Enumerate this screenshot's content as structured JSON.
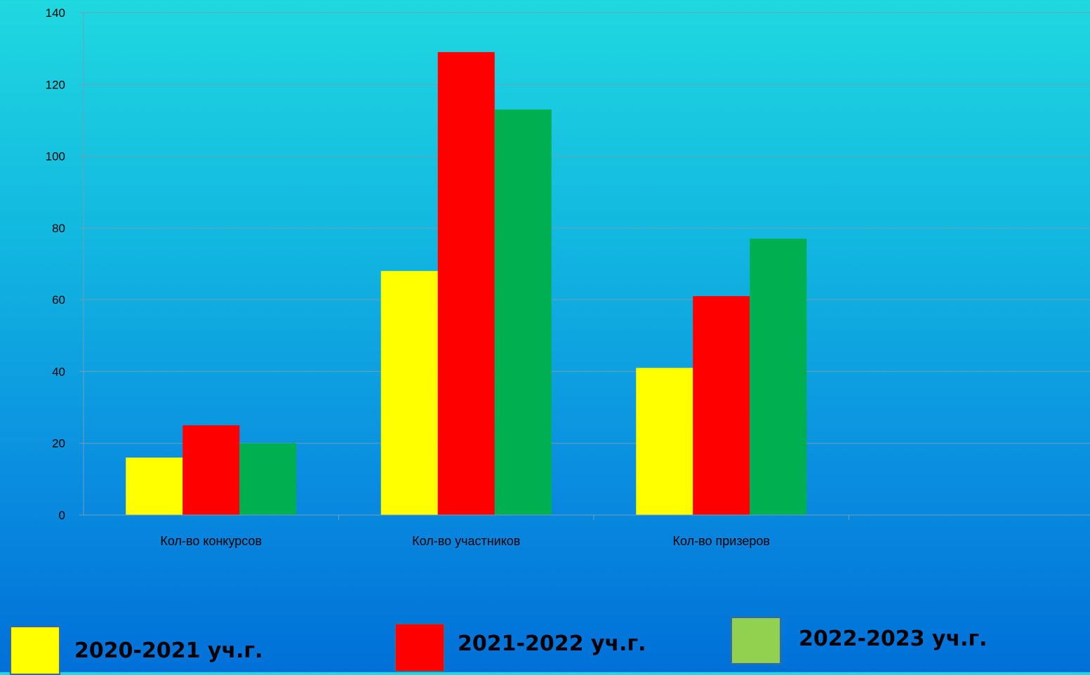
{
  "chart_data": {
    "type": "bar",
    "categories": [
      "Кол-во конкурсов",
      "Кол-во участников",
      "Кол-во призеров"
    ],
    "series": [
      {
        "name": "2020-2021 уч.г.",
        "values": [
          16,
          68,
          41
        ],
        "color": "#ffff00"
      },
      {
        "name": "2021-2022 уч.г.",
        "values": [
          25,
          129,
          61
        ],
        "color": "#ff0000"
      },
      {
        "name": "2022-2023 уч.г.",
        "values": [
          20,
          113,
          77
        ],
        "color": "#00b050"
      }
    ],
    "ylim": [
      0,
      140
    ],
    "yticks": [
      0,
      20,
      40,
      60,
      80,
      100,
      120,
      140
    ],
    "grid": true,
    "legend_position": "bottom"
  },
  "legend": {
    "items": [
      {
        "label": "2020-2021 уч.г.",
        "color": "#ffff00"
      },
      {
        "label": "2021-2022 уч.г.",
        "color": "#ff0000"
      },
      {
        "label": "2022-2023 уч.г.",
        "color": "#92d050"
      }
    ]
  }
}
